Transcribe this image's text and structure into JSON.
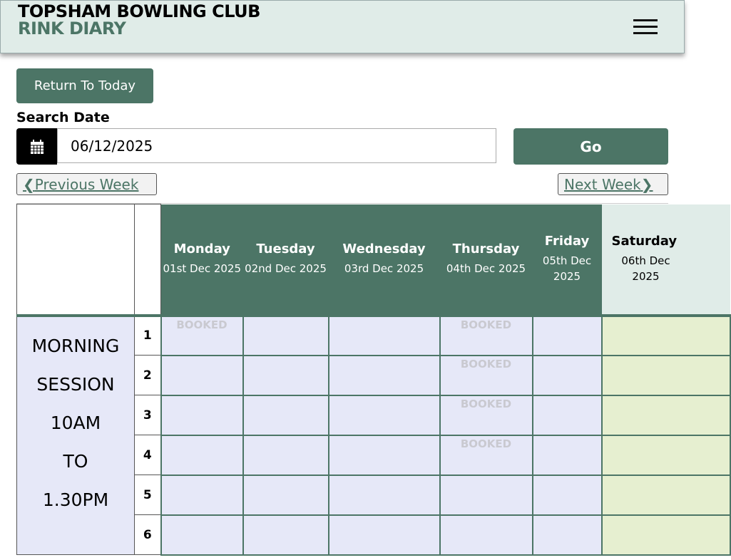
{
  "header": {
    "club": "TOPSHAM BOWLING CLUB",
    "subtitle": "RINK DIARY"
  },
  "return_today": "Return To Today",
  "search": {
    "label": "Search Date",
    "value": "06/12/2025",
    "go": "Go"
  },
  "nav": {
    "prev": "Previous Week",
    "next": "Next Week"
  },
  "days": [
    {
      "name": "Monday",
      "date": "01st Dec 2025"
    },
    {
      "name": "Tuesday",
      "date": "02nd Dec 2025"
    },
    {
      "name": "Wednesday",
      "date": "03rd Dec 2025"
    },
    {
      "name": "Thursday",
      "date": "04th Dec 2025"
    },
    {
      "name": "Friday",
      "date": "05th Dec 2025"
    },
    {
      "name": "Saturday",
      "date": "06th Dec 2025"
    }
  ],
  "session": {
    "lines": [
      "MORNING",
      "SESSION",
      "10AM",
      "TO",
      "1.30PM"
    ]
  },
  "booked_label": "BOOKED",
  "rinks": [
    {
      "n": "1",
      "booked": [
        true,
        false,
        false,
        true,
        false,
        false
      ]
    },
    {
      "n": "2",
      "booked": [
        false,
        false,
        false,
        true,
        false,
        false
      ]
    },
    {
      "n": "3",
      "booked": [
        false,
        false,
        false,
        true,
        false,
        false
      ]
    },
    {
      "n": "4",
      "booked": [
        false,
        false,
        false,
        true,
        false,
        false
      ]
    },
    {
      "n": "5",
      "booked": [
        false,
        false,
        false,
        false,
        false,
        false
      ]
    },
    {
      "n": "6",
      "booked": [
        false,
        false,
        false,
        false,
        false,
        false
      ]
    }
  ],
  "colors": {
    "accent": "#4c7566",
    "cell": "#e6e8f8",
    "today": "#e6efd0"
  }
}
